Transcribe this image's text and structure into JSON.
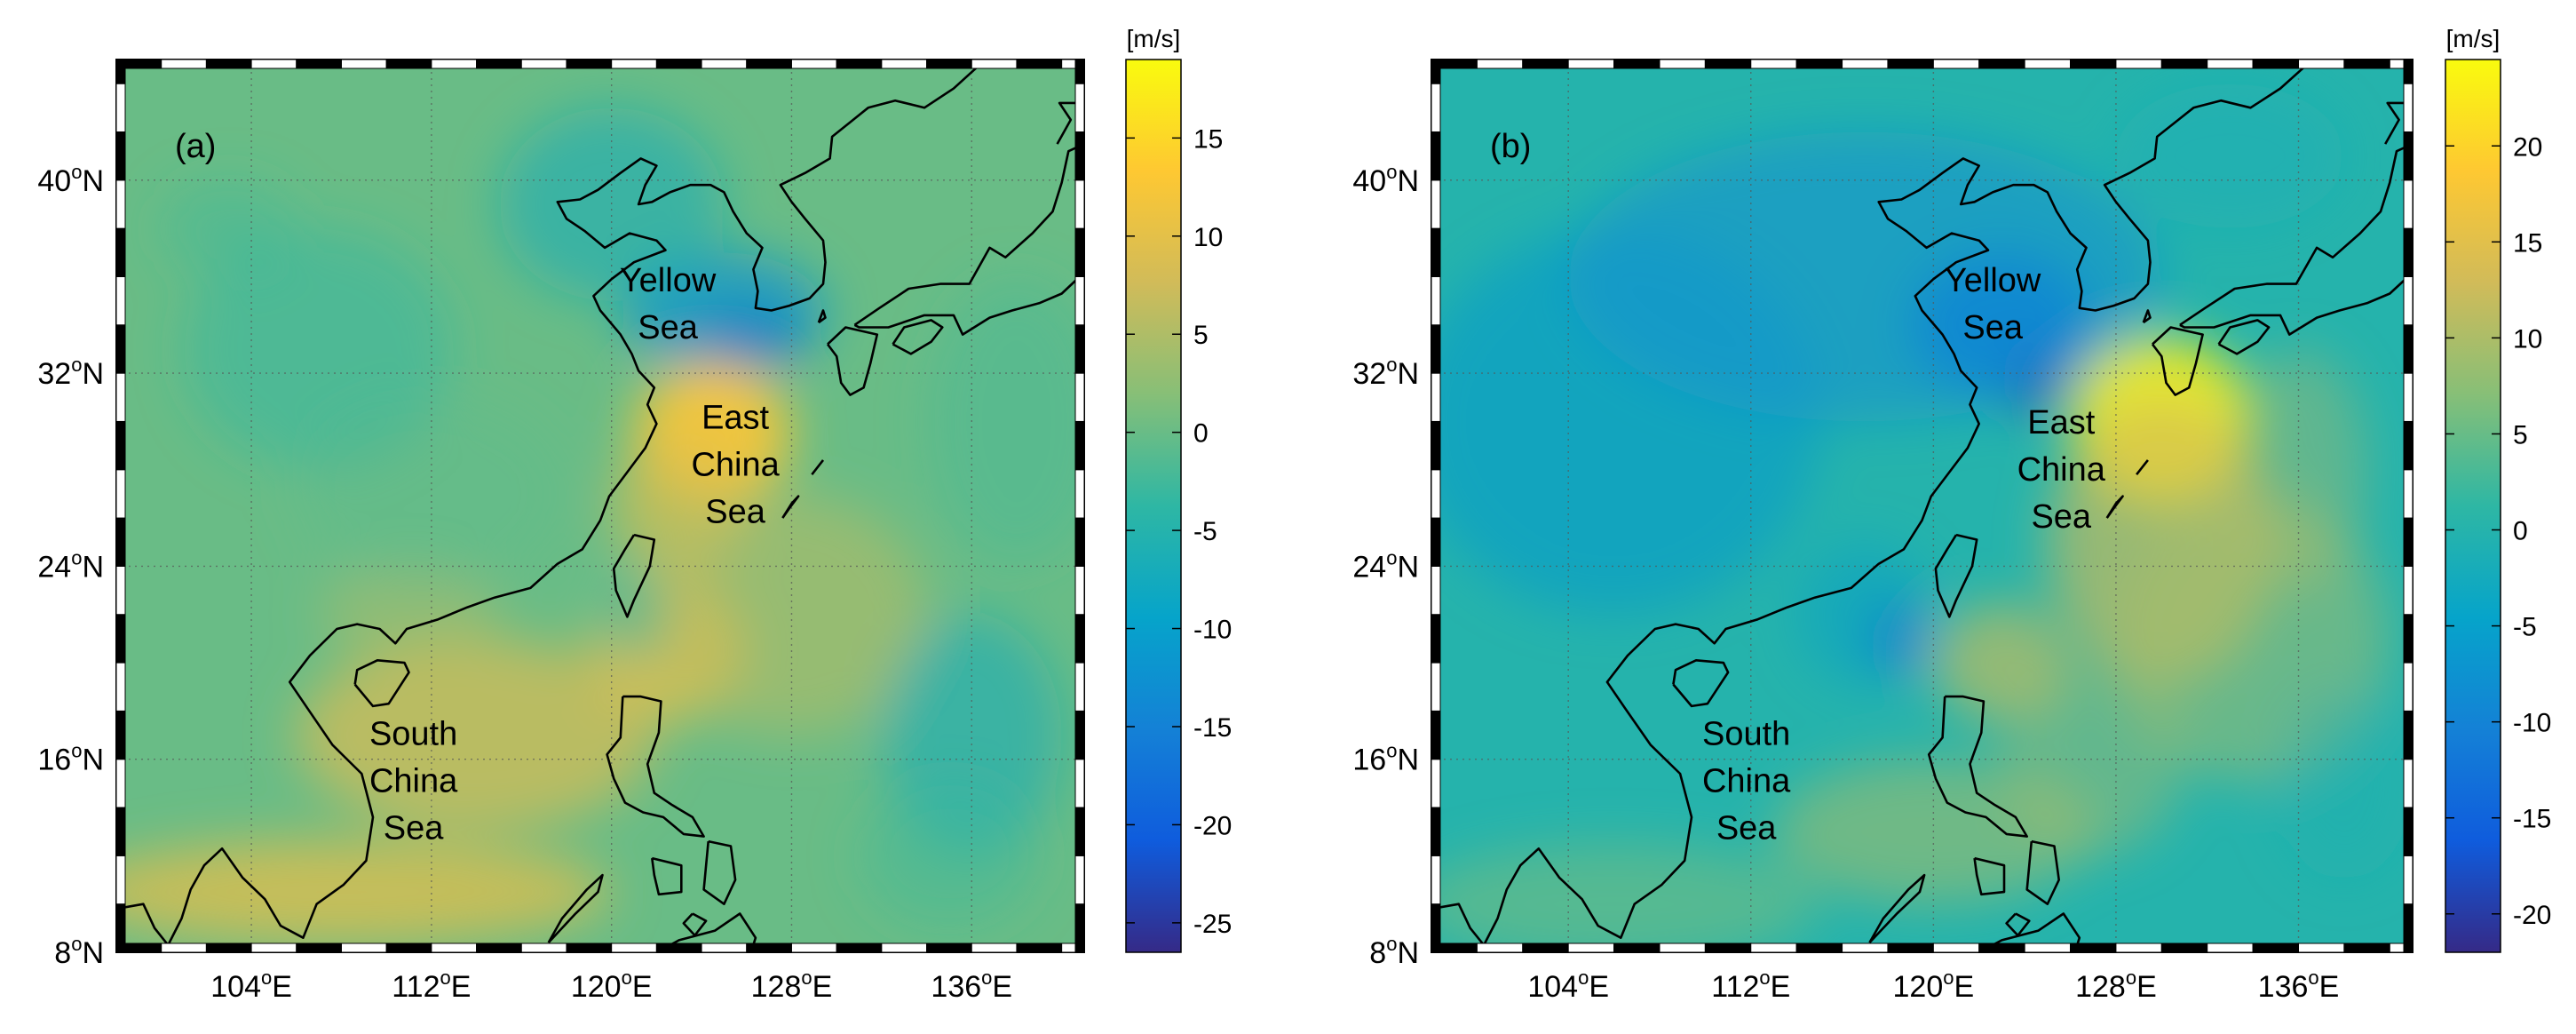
{
  "panels": [
    {
      "label": "(a)",
      "unit": "[m/s]",
      "colorbar_ticks": [
        15,
        10,
        5,
        0,
        -5,
        -10,
        -15,
        -20,
        -25
      ],
      "colorbar_range": [
        -26.5,
        19
      ],
      "regions": [
        {
          "key": "yellow",
          "lines": [
            "Yellow",
            "Sea"
          ],
          "color": "#000000"
        },
        {
          "key": "east",
          "lines": [
            "East",
            "China",
            "Sea"
          ],
          "color": "#000000"
        },
        {
          "key": "south",
          "lines": [
            "South",
            "China",
            "Sea"
          ],
          "color": "#000000"
        }
      ]
    },
    {
      "label": "(b)",
      "unit": "[m/s]",
      "colorbar_ticks": [
        20,
        15,
        10,
        5,
        0,
        -5,
        -10,
        -15,
        -20
      ],
      "colorbar_range": [
        -22,
        24.5
      ],
      "regions": [
        {
          "key": "yellow",
          "lines": [
            "Yellow",
            "Sea"
          ],
          "color": "#000000"
        },
        {
          "key": "east",
          "lines": [
            "East",
            "China",
            "Sea"
          ],
          "color": "#000000"
        },
        {
          "key": "south",
          "lines": [
            "South",
            "China",
            "Sea"
          ],
          "color": "#000000"
        }
      ]
    }
  ],
  "lat_ticks": [
    "8",
    "16",
    "24",
    "32",
    "40"
  ],
  "lat_suffix": "N",
  "lon_ticks": [
    "104",
    "112",
    "120",
    "128",
    "136"
  ],
  "lon_suffix": "E",
  "degree_mark": "o",
  "extent": {
    "lon": [
      98,
      141
    ],
    "lat": [
      8,
      45
    ]
  },
  "colormap": [
    "#352a87",
    "#0f5cdd",
    "#1481d6",
    "#06a4ca",
    "#2eb7a4",
    "#87bf77",
    "#d1bb59",
    "#fec832",
    "#f9fb0e"
  ]
}
